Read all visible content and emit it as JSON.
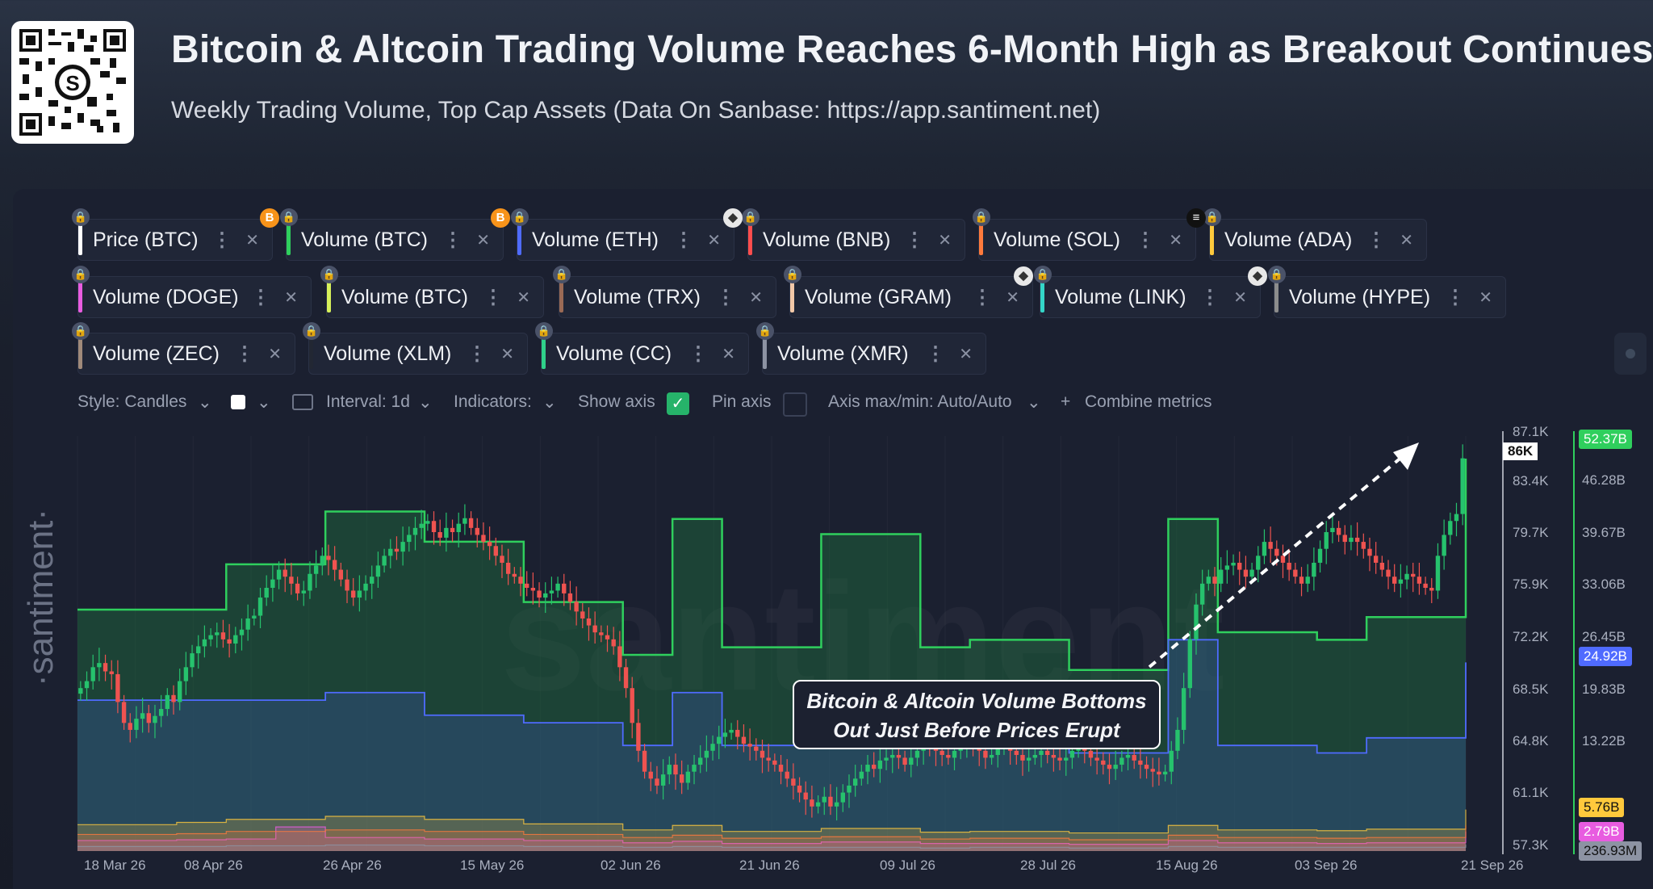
{
  "header": {
    "title": "Bitcoin & Altcoin Trading Volume Reaches 6-Month High as Breakout Continues",
    "subtitle": "Weekly Trading Volume, Top Cap Assets (Data On Sanbase: https://app.santiment.net)"
  },
  "metrics": [
    {
      "label": "Price (BTC)",
      "color": "#ffffff"
    },
    {
      "label": "Volume (BTC)",
      "color": "#2fcf5d"
    },
    {
      "label": "Volume (ETH)",
      "color": "#4f6bff"
    },
    {
      "label": "Volume (BNB)",
      "color": "#ff4d4d"
    },
    {
      "label": "Volume (SOL)",
      "color": "#ff7a3c"
    },
    {
      "label": "Volume (ADA)",
      "color": "#ffc93c"
    },
    {
      "label": "Volume (DOGE)",
      "color": "#e85ce0"
    },
    {
      "label": "Volume (BTC)",
      "color": "#d6f05a"
    },
    {
      "label": "Volume (TRX)",
      "color": "#9a6a55"
    },
    {
      "label": "Volume (GRAM)",
      "color": "#f2c8a8"
    },
    {
      "label": "Volume (LINK)",
      "color": "#34d6c8"
    },
    {
      "label": "Volume (HYPE)",
      "color": "#8c8c8c"
    },
    {
      "label": "Volume (ZEC)",
      "color": "#a08a7a"
    },
    {
      "label": "Volume (XLM)",
      "color": "#222733"
    },
    {
      "label": "Volume (CC)",
      "color": "#2fd18a"
    },
    {
      "label": "Volume (XMR)",
      "color": "#8d93a3"
    }
  ],
  "toolbar": {
    "style": "Style: Candles",
    "interval": "Interval: 1d",
    "indicators": "Indicators:",
    "show_axis": "Show axis",
    "pin_axis": "Pin axis",
    "axis_maxmin": "Axis max/min: Auto/Auto",
    "combine": "Combine metrics"
  },
  "watermark": "santiment",
  "side_logo": "·santiment·",
  "annotation": {
    "line1": "Bitcoin & Altcoin Volume Bottoms",
    "line2": "Out Just Before Prices Erupt"
  },
  "chart_data": {
    "type": "line",
    "x_ticks": [
      "18 Mar 26",
      "08 Apr 26",
      "26 Apr 26",
      "15 May 26",
      "02 Jun 26",
      "21 Jun 26",
      "09 Jul 26",
      "28 Jul 26",
      "15 Aug 26",
      "03 Sep 26",
      "21 Sep 26"
    ],
    "price_axis_ticks": [
      "87.1K",
      "83.4K",
      "79.7K",
      "75.9K",
      "72.2K",
      "68.5K",
      "64.8K",
      "61.1K",
      "57.3K"
    ],
    "price_current": "86K",
    "volume_axis_ticks": [
      "52.37B",
      "46.28B",
      "39.67B",
      "33.06B",
      "26.45B",
      "19.83B",
      "13.22B",
      "5.76B",
      "2.79B",
      "236.93M"
    ],
    "volume_badges": [
      {
        "label": "52.37B",
        "color": "#2fcf5d"
      },
      {
        "label": "24.92B",
        "color": "#4f6bff"
      },
      {
        "label": "5.76B",
        "color": "#ffc93c"
      },
      {
        "label": "2.79B",
        "color": "#e85ce0"
      },
      {
        "label": "236.93M",
        "color": "#8d93a3"
      }
    ],
    "weeks": 28,
    "btc_volume_weekly_B": [
      32,
      32,
      32,
      38,
      38,
      45,
      45,
      41,
      41,
      33,
      33,
      26,
      44,
      27,
      27,
      42,
      42,
      27,
      28,
      28,
      24,
      24,
      44,
      29,
      29,
      28,
      31,
      31,
      52
    ],
    "eth_volume_weekly_B": [
      20,
      20,
      20,
      20,
      20,
      21,
      21,
      18,
      18,
      17,
      17,
      14,
      21,
      14,
      14,
      20,
      20,
      15,
      15,
      14,
      13,
      13,
      28,
      14,
      14,
      13,
      15,
      15,
      25
    ],
    "btc_price_daily_K": [
      69.0,
      69.5,
      70.5,
      70.8,
      70.2,
      70.0,
      68.0,
      66.5,
      66.0,
      66.8,
      67.2,
      66.5,
      67.0,
      67.5,
      68.5,
      68.0,
      69.5,
      70.5,
      71.5,
      72.0,
      72.5,
      72.8,
      73.0,
      72.5,
      72.2,
      72.8,
      73.2,
      74.0,
      74.2,
      75.5,
      76.2,
      76.8,
      77.5,
      77.0,
      76.5,
      75.8,
      76.0,
      77.2,
      77.8,
      78.5,
      78.2,
      77.5,
      76.8,
      76.0,
      75.5,
      76.0,
      76.5,
      77.0,
      77.8,
      78.5,
      79.0,
      78.8,
      79.5,
      80.0,
      80.5,
      80.8,
      81.0,
      80.2,
      79.8,
      80.5,
      80.2,
      80.8,
      81.2,
      80.5,
      80.0,
      79.5,
      79.2,
      78.5,
      78.0,
      77.2,
      77.0,
      76.5,
      76.2,
      76.0,
      75.5,
      75.8,
      76.0,
      76.5,
      75.8,
      75.2,
      74.5,
      74.0,
      73.5,
      73.0,
      72.8,
      72.5,
      72.0,
      70.5,
      69.0,
      66.5,
      64.5,
      63.0,
      62.5,
      62.0,
      62.8,
      63.5,
      62.8,
      62.2,
      63.0,
      63.5,
      64.0,
      64.5,
      65.0,
      65.5,
      65.8,
      66.0,
      65.5,
      65.0,
      64.8,
      64.5,
      64.0,
      63.8,
      63.5,
      63.0,
      62.5,
      62.0,
      61.5,
      61.0,
      60.5,
      60.8,
      61.2,
      60.5,
      60.8,
      61.5,
      62.0,
      62.5,
      63.0,
      63.5,
      63.2,
      63.8,
      64.0,
      64.2,
      64.0,
      63.5,
      64.0,
      64.5,
      65.0,
      64.8,
      64.5,
      64.2,
      64.0,
      64.5,
      65.0,
      65.2,
      64.8,
      64.5,
      64.0,
      64.2,
      64.8,
      65.0,
      64.5,
      64.2,
      63.8,
      64.0,
      64.2,
      64.5,
      64.2,
      64.0,
      63.8,
      64.0,
      64.5,
      64.8,
      64.5,
      64.0,
      63.8,
      63.5,
      63.2,
      63.5,
      64.0,
      64.2,
      63.8,
      63.5,
      63.2,
      63.0,
      62.8,
      63.0,
      64.5,
      66.0,
      69.0,
      72.5,
      75.0,
      76.5,
      77.0,
      76.5,
      77.5,
      77.8,
      78.0,
      77.5,
      77.0,
      77.5,
      78.5,
      79.5,
      79.0,
      78.5,
      78.0,
      77.5,
      77.0,
      76.5,
      77.0,
      78.0,
      79.0,
      80.2,
      80.5,
      80.0,
      79.5,
      79.8,
      79.5,
      79.0,
      78.5,
      78.0,
      77.5,
      77.0,
      76.5,
      76.8,
      77.2,
      77.0,
      76.5,
      76.2,
      76.0,
      78.5,
      80.0,
      81.0,
      81.5,
      85.5
    ]
  }
}
